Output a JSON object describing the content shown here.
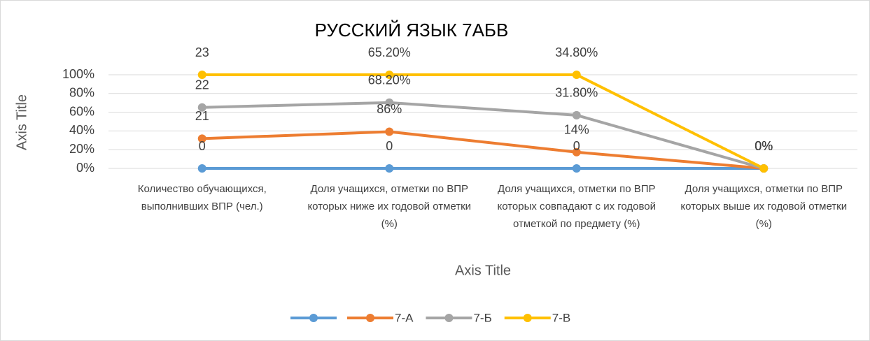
{
  "chart_data": {
    "type": "line",
    "stacked": "percent",
    "title": "РУССКИЙ ЯЗЫК  7АБВ",
    "y_axis_label": "Axis Title",
    "x_axis_label": "Axis Title",
    "categories": [
      "Количество обучающихся, выполнивших  ВПР (чел.)",
      "Доля учащихся, отметки по ВПР которых  ниже их годовой отметки (%)",
      "Доля учащихся, отметки по ВПР которых совпадают с их годовой отметкой по предмету (%)",
      "Доля учащихся, отметки по ВПР которых выше их годовой отметки (%)"
    ],
    "series": [
      {
        "color": "#5b9bd5",
        "values": [
          0,
          0,
          0,
          0
        ],
        "value_labels": [
          "0",
          "0",
          "0",
          "0%"
        ]
      },
      {
        "name": "7-А",
        "color": "#ed7d31",
        "values": [
          21,
          86,
          14,
          0
        ],
        "value_labels": [
          "21",
          "86%",
          "14%",
          "0%"
        ]
      },
      {
        "name": "7-Б",
        "color": "#a5a5a5",
        "values": [
          22,
          68.2,
          31.8,
          0
        ],
        "value_labels": [
          "22",
          "68.20%",
          "31.80%",
          "0%"
        ]
      },
      {
        "name": "7-В",
        "color": "#ffc000",
        "values": [
          23,
          65.2,
          34.8,
          0
        ],
        "value_labels": [
          "23",
          "65.20%",
          "34.80%",
          "0%"
        ]
      }
    ],
    "ylim": [
      0,
      100
    ],
    "yticks": [
      {
        "value": 0,
        "label": "0%"
      },
      {
        "value": 20,
        "label": "20%"
      },
      {
        "value": 40,
        "label": "40%"
      },
      {
        "value": 60,
        "label": "60%"
      },
      {
        "value": 80,
        "label": "80%"
      },
      {
        "value": 100,
        "label": "100%"
      }
    ],
    "grid": true,
    "legend": "bottom"
  }
}
